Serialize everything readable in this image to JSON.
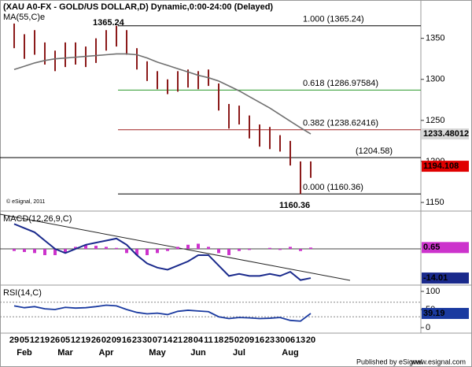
{
  "header": {
    "title": "(XAU A0-FX - GOLD/US DOLLAR,D) Dynamic,0:00-24:00 (Delayed)",
    "ma_label": "MA(55,C)e",
    "watermark": "© eSignal, 2011"
  },
  "footer": {
    "publisher": "Published by eSignal",
    "url": "www.esignal.com"
  },
  "chart_data": [
    {
      "type": "ohlc",
      "categories": [
        "29",
        "05",
        "12",
        "19",
        "26",
        "05",
        "12",
        "19",
        "26",
        "02",
        "09",
        "16",
        "23",
        "30",
        "07",
        "14",
        "21",
        "28",
        "04",
        "11",
        "18",
        "25",
        "02",
        "09",
        "16",
        "23",
        "30",
        "06",
        "13",
        "20"
      ],
      "months": [
        null,
        "Feb",
        null,
        null,
        null,
        "Mar",
        null,
        null,
        null,
        "Apr",
        null,
        null,
        null,
        null,
        "May",
        null,
        null,
        null,
        "Jun",
        null,
        null,
        null,
        "Jul",
        null,
        null,
        null,
        null,
        "Aug",
        null,
        null
      ],
      "high": [
        1368,
        1355,
        1360,
        1345,
        1335,
        1345,
        1345,
        1340,
        1350,
        1360,
        1365.24,
        1360,
        1338,
        1322,
        1310,
        1300,
        1310,
        1312,
        1310,
        1312,
        1295,
        1270,
        1268,
        1256,
        1245,
        1242,
        1232,
        1225,
        1200,
        1200
      ],
      "low": [
        1338,
        1325,
        1330,
        1318,
        1310,
        1315,
        1318,
        1315,
        1320,
        1335,
        1340,
        1330,
        1312,
        1298,
        1288,
        1282,
        1285,
        1290,
        1288,
        1292,
        1262,
        1240,
        1245,
        1228,
        1218,
        1215,
        1212,
        1195,
        1160.36,
        1180
      ],
      "bar_color": "#8b1a1a",
      "ma": {
        "values": [
          1312,
          1316,
          1320,
          1323,
          1325,
          1326,
          1327,
          1328,
          1329,
          1330,
          1331,
          1331,
          1330,
          1326,
          1321,
          1317,
          1313,
          1309,
          1305,
          1302,
          1298,
          1292,
          1286,
          1279,
          1272,
          1265,
          1257,
          1249,
          1241,
          1233.48012
        ],
        "color": "#707070"
      },
      "last": {
        "value": 1194.108,
        "color": "#e00000"
      },
      "ylim": [
        1139.5,
        1396.7
      ],
      "yticks": [
        1350,
        1300,
        1250,
        1200,
        1150
      ],
      "levels": [
        {
          "label": "1.000 (1365.24)",
          "value": 1365.24,
          "color": "#000000"
        },
        {
          "label": "0.618 (1286.97584)",
          "value": 1286.97584,
          "color": "#2a9a2a"
        },
        {
          "label": "0.382 (1238.62416)",
          "value": 1238.62416,
          "color": "#a02020"
        },
        {
          "label": "0.000 (1160.36)",
          "value": 1160.36,
          "color": "#000000"
        }
      ],
      "hline": {
        "label": "(1204.58)",
        "value": 1204.58
      },
      "annotations": [
        "1365.24",
        "1160.36"
      ]
    },
    {
      "type": "macd",
      "title": "MACD(12,26,9,C)",
      "macd": [
        12,
        10,
        8,
        4,
        0,
        -2,
        0,
        2,
        3,
        4,
        5,
        2,
        -3,
        -7,
        -9,
        -10,
        -8,
        -6,
        -3,
        -3,
        -8,
        -13,
        -12,
        -13,
        -13,
        -12,
        -13,
        -11,
        -15,
        -14.01
      ],
      "histogram": [
        -1,
        -1.5,
        -2,
        -3,
        -3,
        -2,
        1,
        2,
        1.5,
        1,
        0.5,
        -2,
        -3,
        -3,
        -2,
        -1,
        1,
        2,
        2.5,
        1,
        -2,
        -3,
        -1,
        -0.5,
        0,
        0.5,
        -0.5,
        1,
        -1,
        0.65
      ],
      "macd_color": "#1a2a8c",
      "hist_color": "#cc33cc",
      "ylim": [
        -17.4,
        18.2
      ]
    },
    {
      "type": "rsi",
      "title": "RSI(14,C)",
      "values": [
        60,
        55,
        58,
        52,
        50,
        56,
        54,
        55,
        58,
        62,
        60,
        50,
        42,
        38,
        40,
        36,
        45,
        48,
        46,
        44,
        30,
        25,
        28,
        27,
        25,
        26,
        28,
        20,
        18,
        39.19
      ],
      "color": "#1a3aa0",
      "ylim": [
        -15.2,
        117.4
      ],
      "yticks": [
        100,
        50,
        0
      ],
      "guides": [
        70,
        30
      ]
    }
  ]
}
